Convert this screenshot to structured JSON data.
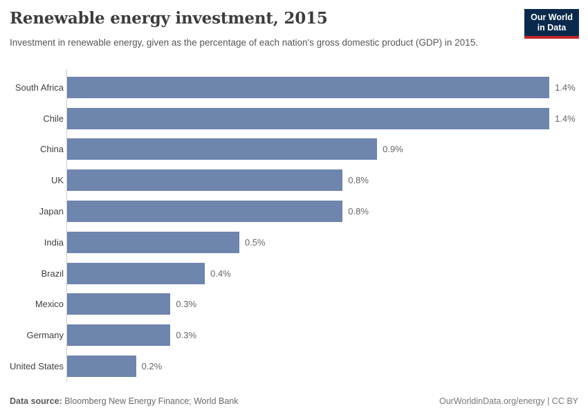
{
  "header": {
    "title": "Renewable energy investment, 2015",
    "subtitle": "Investment in renewable energy, given as the percentage of each nation's gross domestic product (GDP) in 2015.",
    "logo": {
      "line1": "Our World",
      "line2": "in Data"
    }
  },
  "chart_data": {
    "type": "bar",
    "orientation": "horizontal",
    "title": "Renewable energy investment, 2015",
    "subtitle": "Investment in renewable energy, given as the percentage of each nation's gross domestic product (GDP) in 2015.",
    "categories": [
      "South Africa",
      "Chile",
      "China",
      "UK",
      "Japan",
      "India",
      "Brazil",
      "Mexico",
      "Germany",
      "United States"
    ],
    "values": [
      1.4,
      1.4,
      0.9,
      0.8,
      0.8,
      0.5,
      0.4,
      0.3,
      0.3,
      0.2
    ],
    "value_labels": [
      "1.4%",
      "1.4%",
      "0.9%",
      "0.8%",
      "0.8%",
      "0.5%",
      "0.4%",
      "0.3%",
      "0.3%",
      "0.2%"
    ],
    "unit": "% of GDP",
    "xlabel": "",
    "ylabel": "",
    "xlim": [
      0,
      1.4
    ],
    "grid": false,
    "legend": "none",
    "bar_color": "#6e85ad",
    "axis_color": "#cfcfcf"
  },
  "footer": {
    "source_label": "Data source:",
    "source_text": " Bloomberg New Energy Finance; World Bank",
    "credit": "OurWorldinData.org/energy | CC BY"
  },
  "colors": {
    "bar": "#6e85ad",
    "axis": "#cfcfcf",
    "title_text": "#3d3d3d",
    "subtitle_text": "#565656",
    "logo_navy": "#0a2a4d",
    "logo_red": "#c0262d"
  }
}
